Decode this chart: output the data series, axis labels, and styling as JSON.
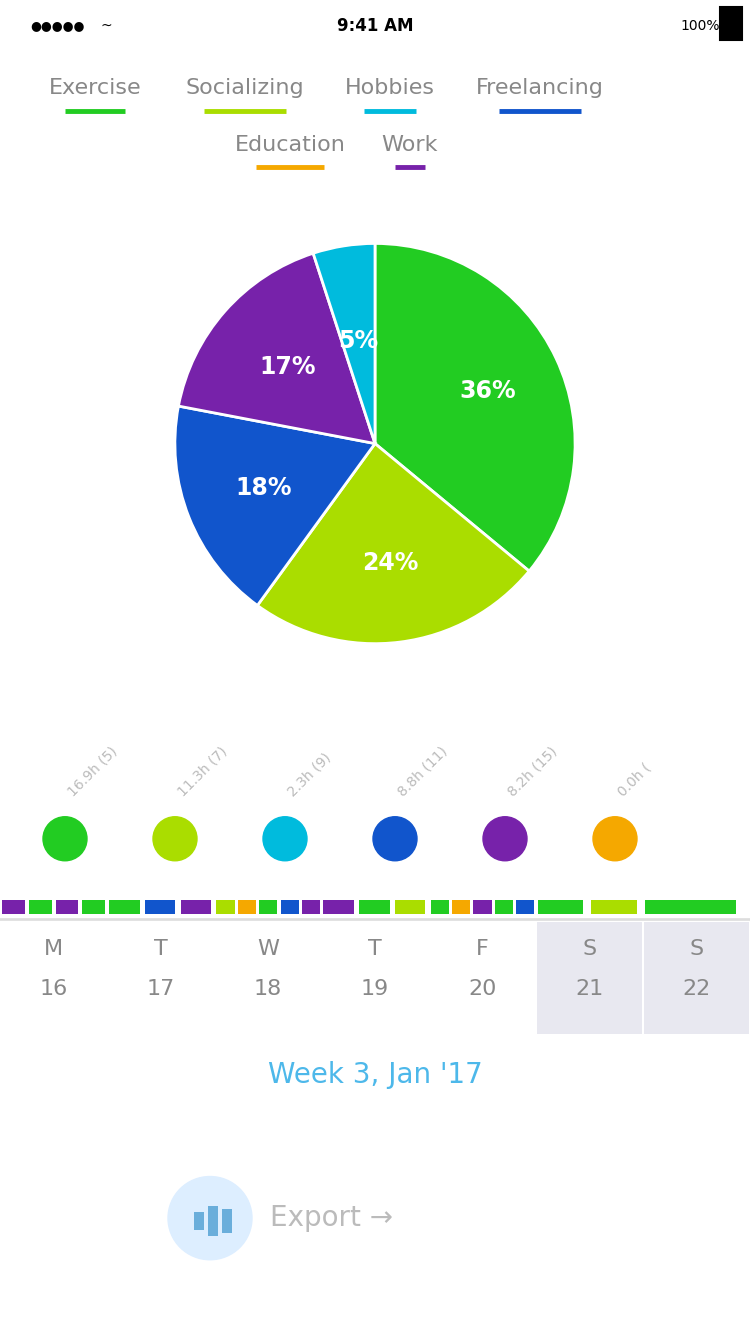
{
  "title": "Week 3, Jan '17",
  "categories": [
    "Exercise",
    "Socializing",
    "Hobbies",
    "Freelancing",
    "Education",
    "Work"
  ],
  "underline_colors": [
    "#22cc22",
    "#aadd00",
    "#00bbdd",
    "#1155cc",
    "#f5a800",
    "#7722aa"
  ],
  "pie_labels": [
    "36%",
    "24%",
    "18%",
    "17%",
    "5%"
  ],
  "pie_values": [
    36,
    24,
    18,
    17,
    5
  ],
  "pie_colors": [
    "#22cc22",
    "#aadd00",
    "#1155cc",
    "#7722aa",
    "#00bbdd"
  ],
  "dot_labels": [
    "16.9h (5)",
    "11.3h (7)",
    "2.3h (9)",
    "8.8h (11)",
    "8.2h (15)",
    "0.0h ("
  ],
  "dot_colors": [
    "#22cc22",
    "#aadd00",
    "#00bbdd",
    "#1155cc",
    "#7722aa",
    "#f5a800"
  ],
  "week_days_top": [
    "M",
    "T",
    "W",
    "T",
    "F",
    "S",
    "S"
  ],
  "week_days_bot": [
    "16",
    "17",
    "18",
    "19",
    "20",
    "21",
    "22"
  ],
  "week_highlight": [
    5,
    6
  ],
  "bar_colors_top": [
    [
      "#7722aa",
      "#22cc22",
      "#7722aa",
      "#22cc22"
    ],
    [
      "#22cc22",
      "#1155cc",
      "#7722aa"
    ],
    [
      "#aadd00",
      "#f5a800",
      "#22cc22",
      "#1155cc",
      "#7722aa"
    ],
    [
      "#7722aa",
      "#22cc22",
      "#aadd00"
    ],
    [
      "#22cc22",
      "#f5a800",
      "#7722aa",
      "#22cc22",
      "#1155cc"
    ],
    [
      "#22cc22",
      "#aadd00"
    ],
    [
      "#22cc22"
    ]
  ],
  "export_text": "Export →",
  "background_color": "#ffffff",
  "title_color": "#4db8ea",
  "text_color": "#999999",
  "label_color": "#cccccc"
}
